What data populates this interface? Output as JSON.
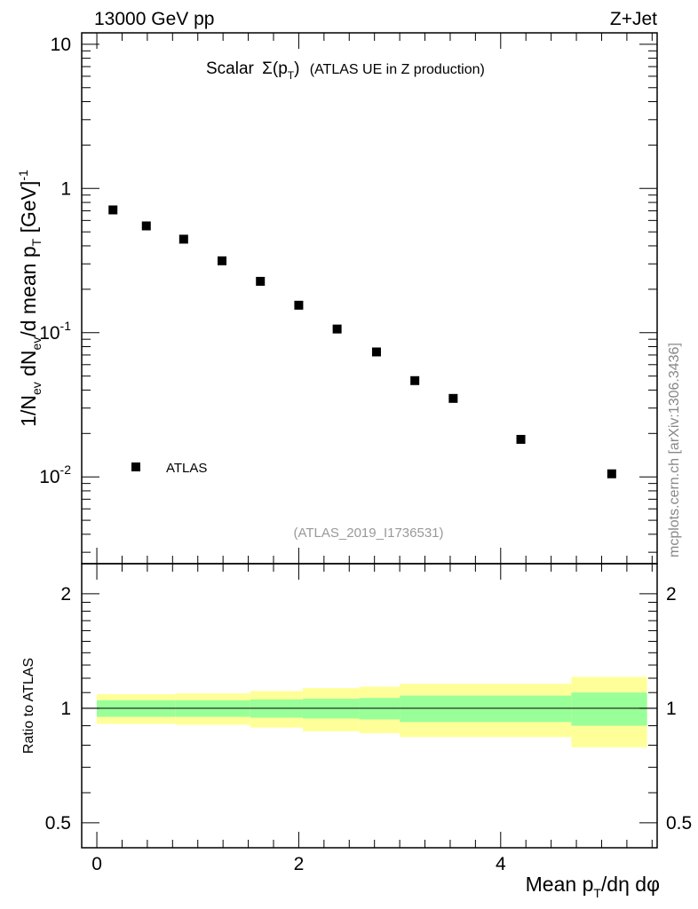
{
  "header": {
    "left": "13000 GeV pp",
    "right": "Z+Jet"
  },
  "main": {
    "title_scalar": "Scalar",
    "title_sigma": "Σ(p",
    "title_sub": "T",
    "title_close": ")",
    "title_rest": "(ATLAS UE in Z production)",
    "legend": "ATLAS",
    "analysis": "(ATLAS_2019_I1736531)",
    "ylabel_parts": [
      "1/N",
      "ev",
      " dN",
      "ev",
      "/d mean p",
      "T",
      " [GeV]",
      "-1"
    ]
  },
  "ratio": {
    "ylabel": "Ratio to ATLAS"
  },
  "xaxis": {
    "label_parts": [
      "Mean p",
      "T",
      "/dη dφ"
    ]
  },
  "watermark": "mcplots.cern.ch [arXiv:1306.3436]",
  "colors": {
    "marker": "#000000",
    "band_inner": "#99ff99",
    "band_outer": "#ffff99",
    "analysis_text": "#999999",
    "watermark": "#888888"
  },
  "chart_data": [
    {
      "type": "scatter",
      "series": [
        {
          "name": "ATLAS",
          "x": [
            0.16,
            0.49,
            0.86,
            1.24,
            1.62,
            2.0,
            2.38,
            2.77,
            3.15,
            3.53,
            4.2,
            5.1
          ],
          "y": [
            0.71,
            0.55,
            0.445,
            0.315,
            0.227,
            0.155,
            0.106,
            0.0735,
            0.0465,
            0.035,
            0.0182,
            0.0105
          ]
        }
      ],
      "xlim": [
        -0.15,
        5.55
      ],
      "ylim": [
        0.0025,
        12
      ],
      "yscale": "log",
      "yticks": [
        {
          "value": 0.01,
          "base": "10",
          "exp": "-2"
        },
        {
          "value": 0.1,
          "base": "10",
          "exp": "-1"
        },
        {
          "value": 1,
          "base": "1",
          "exp": ""
        },
        {
          "value": 10,
          "base": "10",
          "exp": ""
        }
      ],
      "legend": "bottom-left",
      "grid": false
    },
    {
      "type": "area",
      "edges": [
        0.0,
        0.78,
        1.52,
        2.04,
        2.6,
        3.0,
        3.76,
        4.7,
        5.45
      ],
      "inner_band": {
        "lower": [
          0.95,
          0.95,
          0.945,
          0.94,
          0.935,
          0.92,
          0.92,
          0.9
        ],
        "upper": [
          1.05,
          1.05,
          1.055,
          1.06,
          1.065,
          1.08,
          1.08,
          1.1
        ]
      },
      "outer_band": {
        "lower": [
          0.91,
          0.905,
          0.89,
          0.87,
          0.86,
          0.84,
          0.84,
          0.79
        ],
        "upper": [
          1.09,
          1.095,
          1.11,
          1.13,
          1.14,
          1.16,
          1.16,
          1.21
        ]
      },
      "reference": 1,
      "xlim": [
        -0.15,
        5.55
      ],
      "ylim": [
        0.43,
        2.4
      ],
      "yscale": "log",
      "yticks": [
        0.5,
        1,
        2
      ],
      "xticks": [
        0,
        2,
        4
      ]
    }
  ]
}
